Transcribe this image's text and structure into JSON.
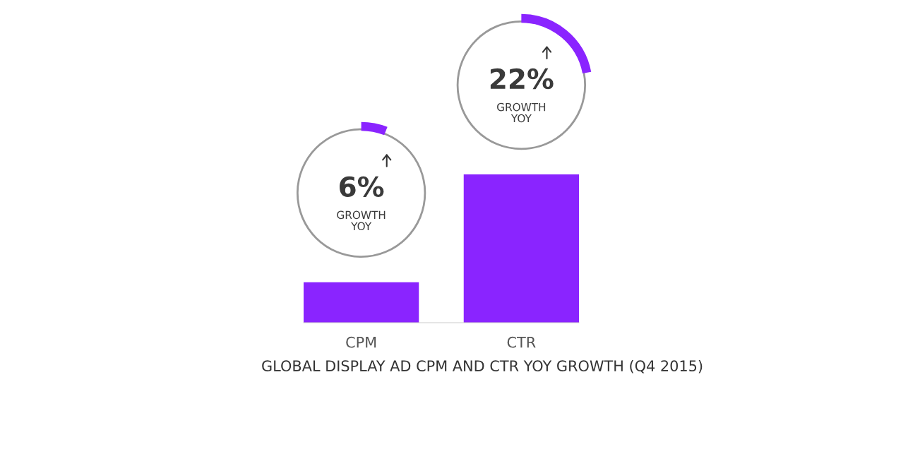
{
  "chart_data": {
    "type": "bar",
    "title": "GLOBAL DISPLAY AD CPM AND CTR YOY GROWTH (Q4 2015)",
    "categories": [
      "CPM",
      "CTR"
    ],
    "values": [
      6,
      22
    ],
    "value_labels": [
      "6%",
      "22%"
    ],
    "annotations": [
      "GROWTH\nYOY",
      "GROWTH\nYOY"
    ],
    "color": "#8a24ff",
    "grid": false
  }
}
